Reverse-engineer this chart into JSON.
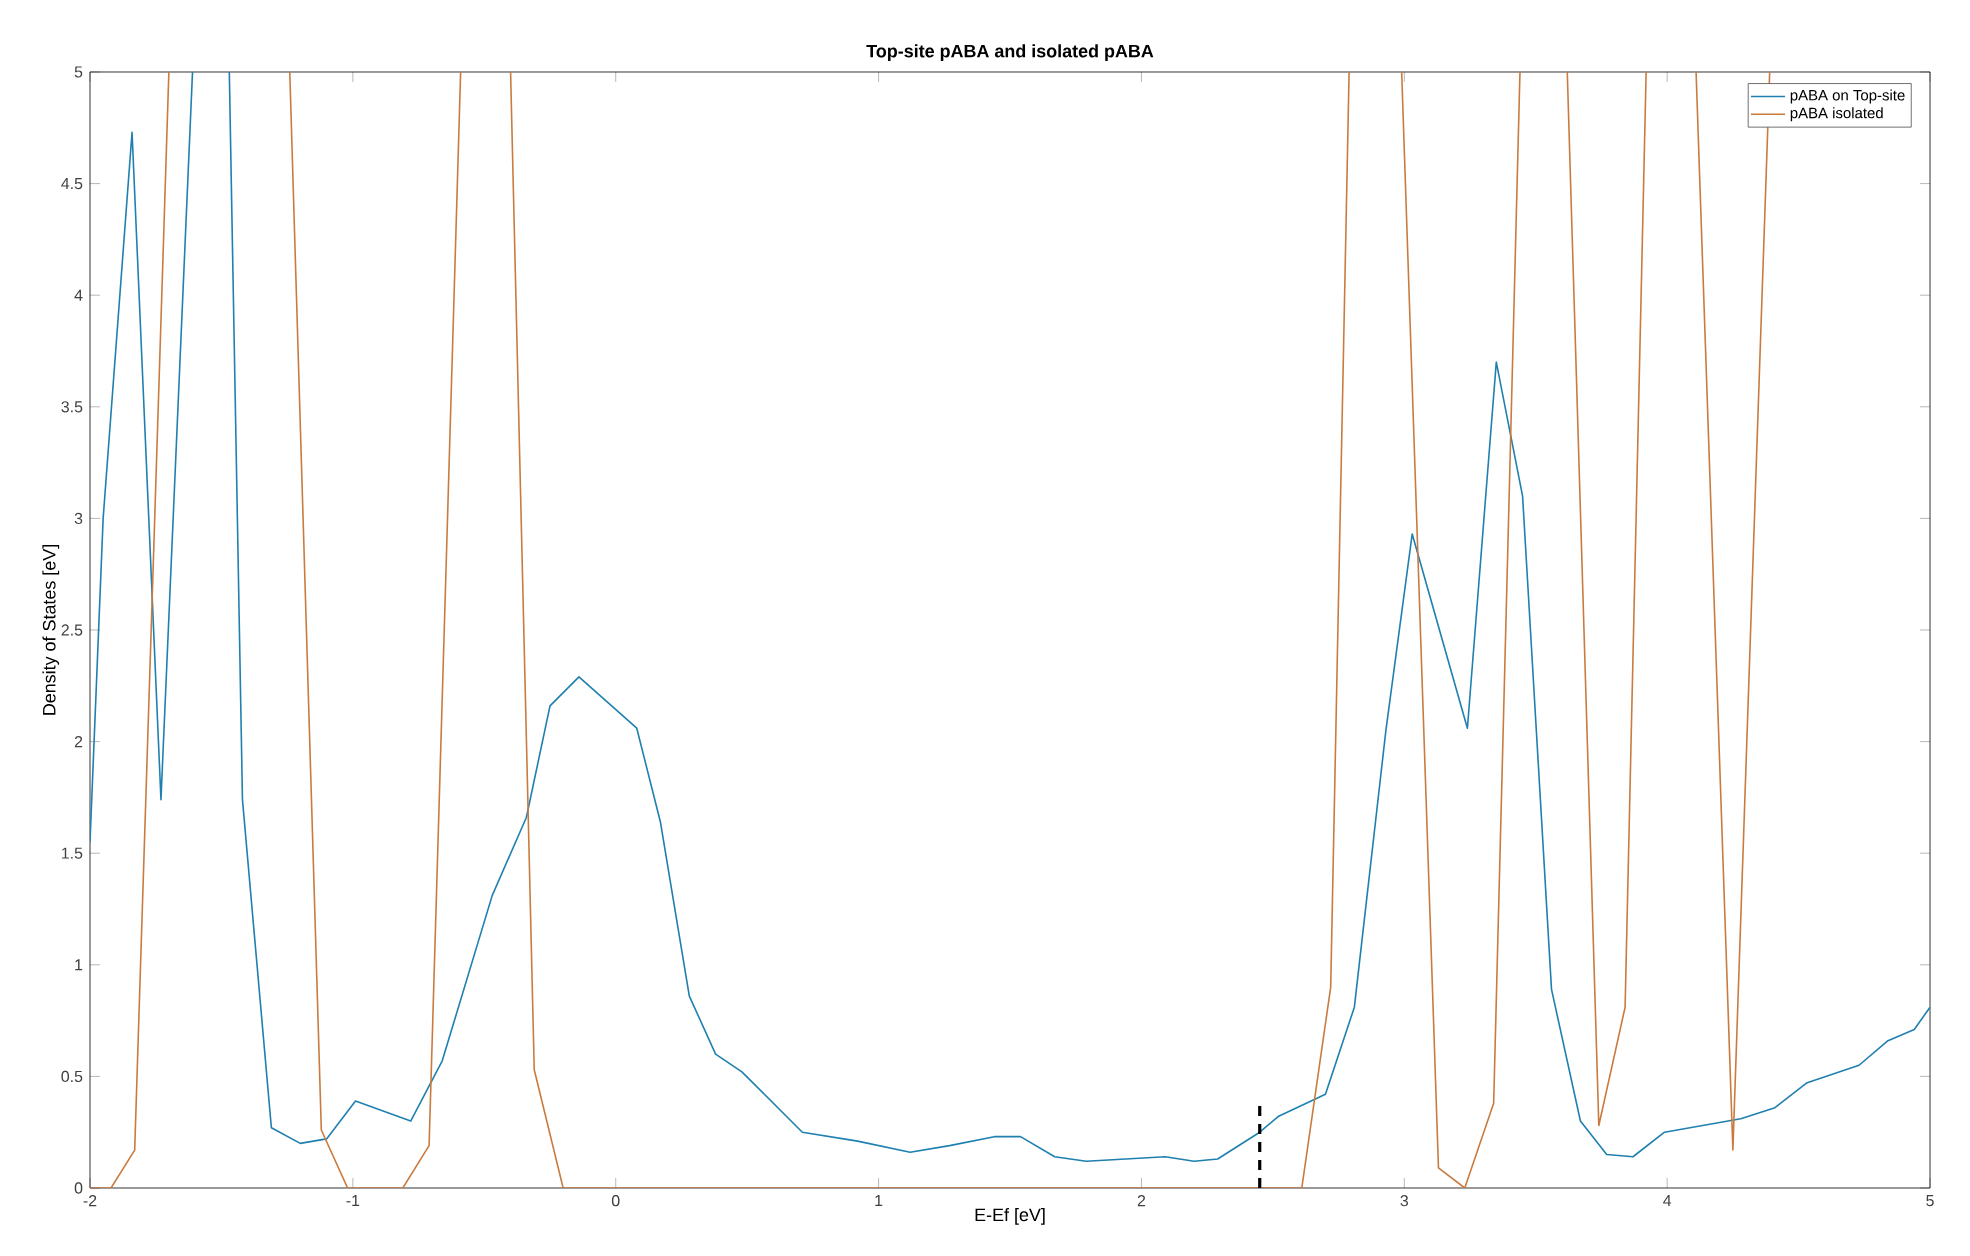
{
  "chart_data": {
    "type": "line",
    "title": "Top-site pABA and isolated pABA",
    "xlabel": "E-Ef [eV]",
    "ylabel": "Density of States [eV]",
    "xlim": [
      -2,
      5
    ],
    "ylim": [
      0,
      5
    ],
    "xticks": [
      -2,
      -1,
      0,
      1,
      2,
      3,
      4,
      5
    ],
    "yticks": [
      0,
      0.5,
      1,
      1.5,
      2,
      2.5,
      3,
      3.5,
      4,
      4.5,
      5
    ],
    "legend": "top right",
    "grid": false,
    "line_style": "solid",
    "marker": "none",
    "series": [
      {
        "name": "pABA on Top-site",
        "color": "#1f80b0",
        "x": [
          -2,
          -1.95,
          -1.84,
          -1.73,
          -1.61,
          null,
          -1.47,
          -1.42,
          -1.31,
          -1.2,
          -1.1,
          -0.99,
          -0.78,
          -0.66,
          -0.47,
          -0.34,
          -0.25,
          -0.14,
          0.08,
          0.17,
          0.28,
          0.38,
          0.48,
          0.71,
          0.92,
          1.12,
          1.27,
          1.44,
          1.54,
          1.67,
          1.79,
          2.09,
          2.2,
          2.29,
          2.45,
          2.52,
          2.7,
          2.81,
          2.93,
          3.03,
          3.24,
          3.35,
          3.45,
          3.56,
          3.67,
          3.77,
          3.87,
          3.99,
          4.28,
          4.41,
          4.53,
          4.73,
          4.84,
          4.94,
          5
        ],
        "values": [
          1.55,
          3,
          4.73,
          1.74,
          5,
          null,
          5,
          1.74,
          0.27,
          0.2,
          0.22,
          0.39,
          0.3,
          0.57,
          1.31,
          1.66,
          2.16,
          2.29,
          2.06,
          1.64,
          0.86,
          0.6,
          0.52,
          0.25,
          0.21,
          0.16,
          0.19,
          0.23,
          0.23,
          0.14,
          0.12,
          0.14,
          0.12,
          0.13,
          0.25,
          0.32,
          0.42,
          0.81,
          2.05,
          2.93,
          2.06,
          3.7,
          3.1,
          0.89,
          0.3,
          0.15,
          0.14,
          0.25,
          0.31,
          0.36,
          0.47,
          0.55,
          0.66,
          0.71,
          0.81
        ]
      },
      {
        "name": "pABA isolated",
        "color": "#c97b3f",
        "x": [
          -2,
          -1.92,
          -1.83,
          -1.7,
          null,
          -1.24,
          -1.12,
          -1.02,
          -0.81,
          -0.71,
          -0.59,
          null,
          -0.4,
          -0.31,
          -0.2,
          2.61,
          2.72,
          2.79,
          null,
          2.99,
          3.13,
          3.23,
          3.34,
          3.44,
          null,
          3.62,
          3.74,
          3.84,
          3.92,
          null,
          4.11,
          4.25,
          4.39
        ],
        "values": [
          0,
          0,
          0.17,
          5,
          null,
          5,
          0.26,
          0,
          0,
          0.19,
          5,
          null,
          5,
          0.53,
          0,
          0,
          0.9,
          5,
          null,
          5,
          0.09,
          0,
          0.38,
          5,
          null,
          5,
          0.28,
          0.81,
          5,
          null,
          5,
          0.17,
          5
        ]
      },
      {
        "color": "#000000",
        "line_style": "dashed",
        "x": [
          2.45,
          2.45
        ],
        "values": [
          0,
          0.37
        ]
      }
    ]
  }
}
